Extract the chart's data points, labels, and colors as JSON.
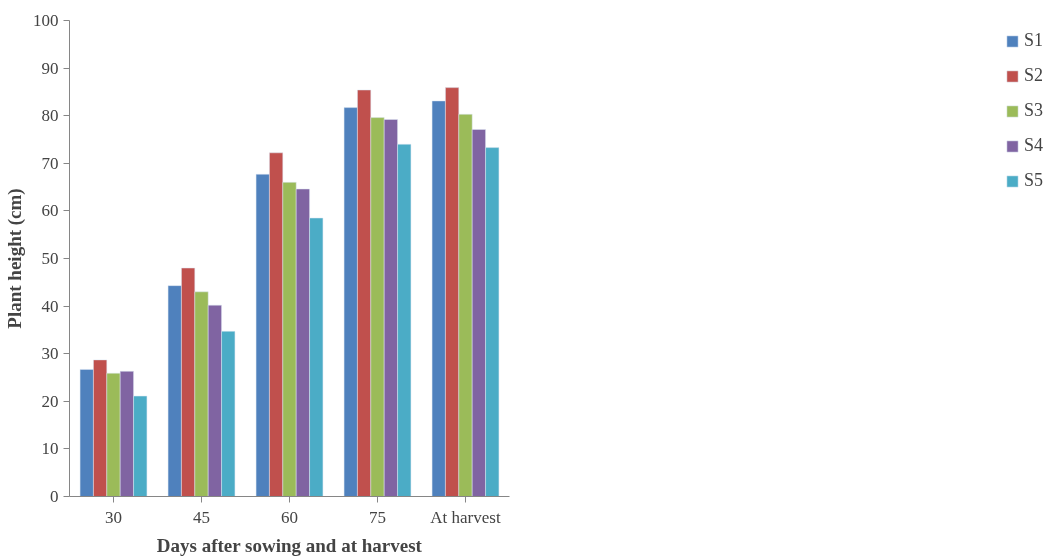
{
  "chart_data": {
    "type": "bar",
    "xlabel": "Days after sowing and at harvest",
    "ylabel": "Plant height (cm)",
    "categories": [
      "30",
      "45",
      "60",
      "75",
      "At harvest"
    ],
    "series": [
      {
        "name": "S1",
        "color": "#4f81bd",
        "values": [
          26.7,
          44.3,
          67.7,
          81.7,
          83.1
        ]
      },
      {
        "name": "S2",
        "color": "#c0504d",
        "values": [
          28.7,
          48.0,
          72.2,
          85.4,
          85.9
        ]
      },
      {
        "name": "S3",
        "color": "#9bbb59",
        "values": [
          25.9,
          43.0,
          66.0,
          79.6,
          80.3
        ]
      },
      {
        "name": "S4",
        "color": "#8064a2",
        "values": [
          26.3,
          40.2,
          64.6,
          79.2,
          77.1
        ]
      },
      {
        "name": "S5",
        "color": "#4bacc6",
        "values": [
          21.1,
          34.7,
          58.5,
          74.0,
          73.3
        ]
      }
    ],
    "ylim": [
      0,
      100
    ],
    "yticks": [
      0,
      10,
      20,
      30,
      40,
      50,
      60,
      70,
      80,
      90,
      100
    ],
    "grid": false,
    "legend": "right"
  }
}
